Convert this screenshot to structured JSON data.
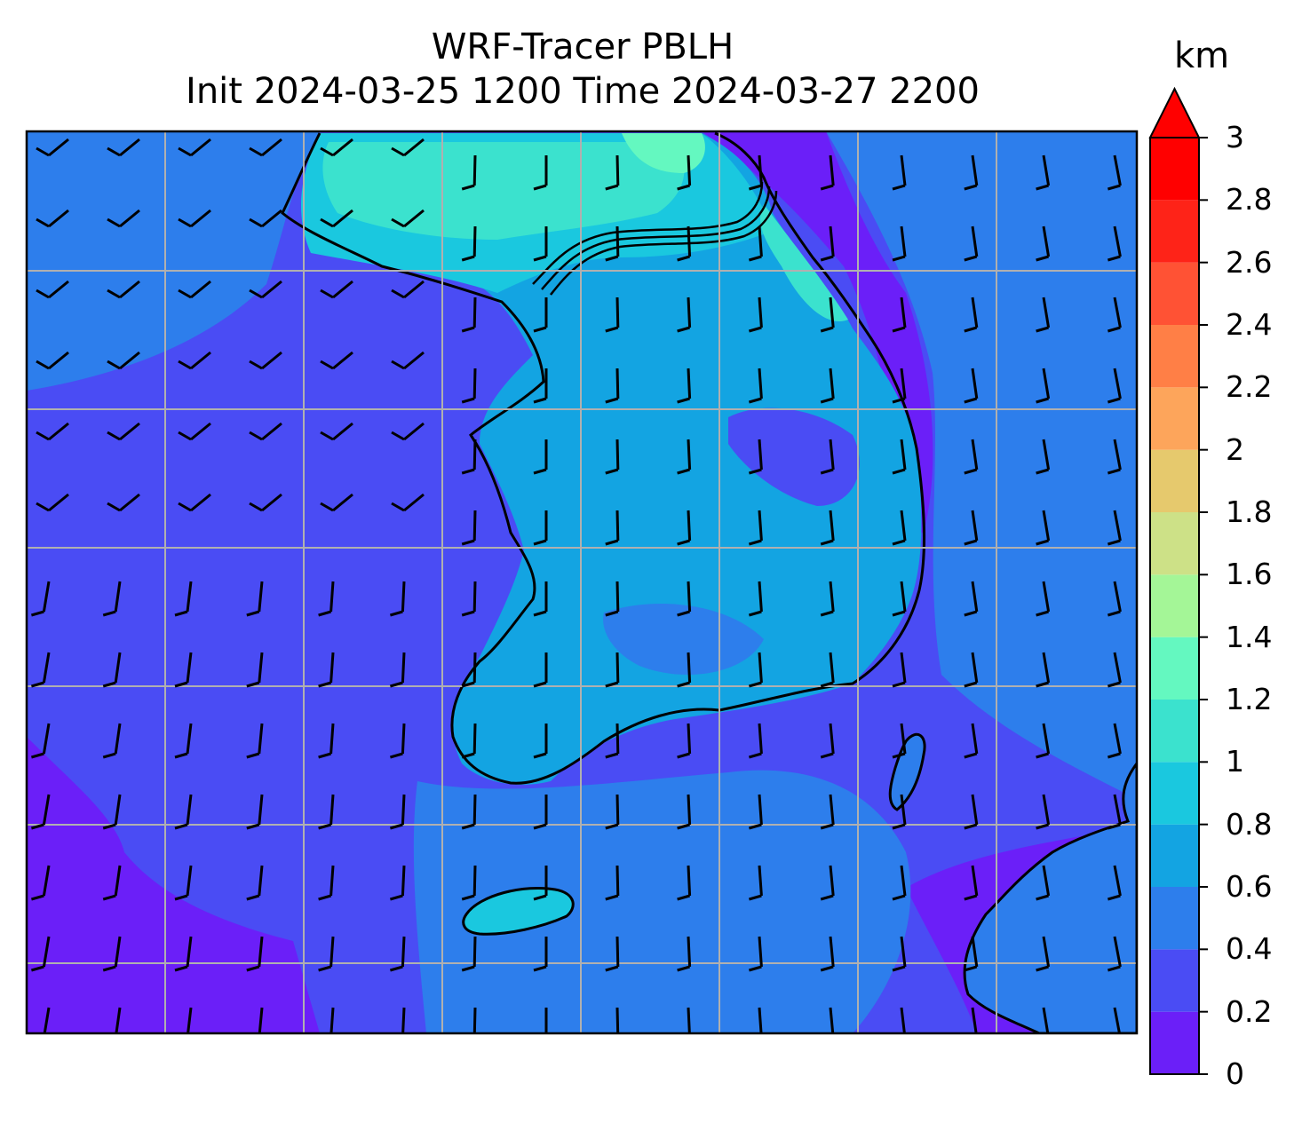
{
  "title": {
    "line1": "WRF-Tracer PBLH",
    "line2": "Init 2024-03-25 1200 Time 2024-03-27 2200"
  },
  "colorbar": {
    "unit": "km",
    "ticks": [
      "0",
      "0.2",
      "0.4",
      "0.6",
      "0.8",
      "1",
      "1.2",
      "1.4",
      "1.6",
      "1.8",
      "2",
      "2.2",
      "2.4",
      "2.6",
      "2.8",
      "3"
    ],
    "levels": [
      0,
      0.2,
      0.4,
      0.6,
      0.8,
      1.0,
      1.2,
      1.4,
      1.6,
      1.8,
      2.0,
      2.2,
      2.4,
      2.6,
      2.8,
      3.0
    ],
    "colors": [
      "#6b1ff8",
      "#4a4cf4",
      "#2d7eec",
      "#13a4e2",
      "#1ac8df",
      "#3be2ce",
      "#64f8c0",
      "#a4f697",
      "#cde187",
      "#e6c96d",
      "#fda55b",
      "#ff7f46",
      "#ff5234",
      "#fe2318",
      "#ff0000"
    ],
    "extend": "max"
  },
  "map": {
    "field": "PBLH",
    "gridlines": true,
    "wind_barbs": true,
    "coastlines": true,
    "colors": {
      "ocean_low": "#4a4cf4",
      "ocean_very_low": "#6b1ff8",
      "land_mid": "#13a4e2",
      "land_high": "#1ac8df",
      "land_peak": "#3be2ce",
      "gridline": "#b0b0b0"
    }
  }
}
